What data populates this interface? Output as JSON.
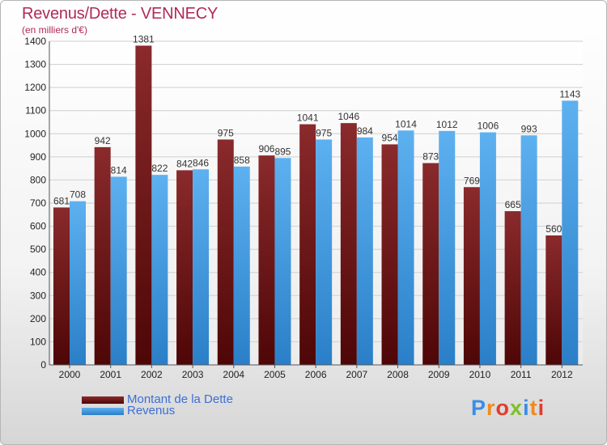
{
  "chart_data": {
    "type": "bar",
    "title": "Revenus/Dette - VENNECY",
    "subtitle": "(en milliers d'€)",
    "categories": [
      "2000",
      "2001",
      "2002",
      "2003",
      "2004",
      "2005",
      "2006",
      "2007",
      "2008",
      "2009",
      "2010",
      "2011",
      "2012"
    ],
    "series": [
      {
        "name": "Montant de la Dette",
        "color": "#7a1a1c",
        "values": [
          681,
          942,
          1381,
          842,
          975,
          906,
          1041,
          1046,
          954,
          873,
          769,
          665,
          560
        ]
      },
      {
        "name": "Revenus",
        "color": "#4aa3e8",
        "values": [
          708,
          814,
          822,
          846,
          858,
          895,
          975,
          984,
          1014,
          1012,
          1006,
          993,
          1143
        ]
      }
    ],
    "ylim": [
      0,
      1400
    ],
    "yticks": [
      0,
      100,
      200,
      300,
      400,
      500,
      600,
      700,
      800,
      900,
      1000,
      1100,
      1200,
      1300,
      1400
    ],
    "grid": true,
    "legend_position": "bottom-left"
  },
  "legend": {
    "items": [
      {
        "label": "Montant de la Dette",
        "color": "#7a1a1c"
      },
      {
        "label": "Revenus",
        "color": "#4aa3e8"
      }
    ]
  },
  "logo": {
    "text": "Proxiti",
    "letter_colors": [
      "#3a8ee6",
      "#f08a1e",
      "#e33b2f",
      "#7fbf2a",
      "#3a8ee6",
      "#f08a1e",
      "#e33b2f"
    ]
  }
}
